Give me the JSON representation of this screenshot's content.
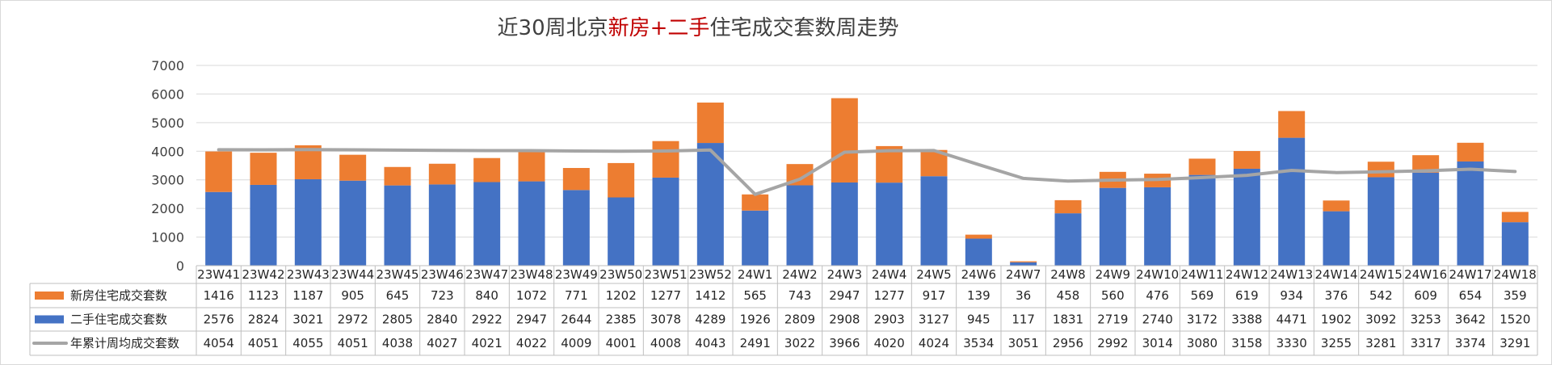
{
  "chart_data": {
    "type": "bar",
    "title": {
      "parts": [
        {
          "text": "近30周北京",
          "color": "#404040"
        },
        {
          "text": "新房+二手",
          "color": "#c00000"
        },
        {
          "text": "住宅成交套数周走势",
          "color": "#404040"
        }
      ]
    },
    "categories": [
      "23W41",
      "23W42",
      "23W43",
      "23W44",
      "23W45",
      "23W46",
      "23W47",
      "23W48",
      "23W49",
      "23W50",
      "23W51",
      "23W52",
      "24W1",
      "24W2",
      "24W3",
      "24W4",
      "24W5",
      "24W6",
      "24W7",
      "24W8",
      "24W9",
      "24W10",
      "24W11",
      "24W12",
      "24W13",
      "24W14",
      "24W15",
      "24W16",
      "24W17",
      "24W18"
    ],
    "ylim": [
      0,
      7000
    ],
    "yticks": [
      0,
      1000,
      2000,
      3000,
      4000,
      5000,
      6000,
      7000
    ],
    "grid": true,
    "legend_placement": "data-table-left",
    "series": [
      {
        "name": "新房住宅成交套数",
        "kind": "bar-stacked",
        "color": "#ed7d31",
        "values": [
          1416,
          1123,
          1187,
          905,
          645,
          723,
          840,
          1072,
          771,
          1202,
          1277,
          1412,
          565,
          743,
          2947,
          1277,
          917,
          139,
          36,
          458,
          560,
          476,
          569,
          619,
          934,
          376,
          542,
          609,
          654,
          359
        ]
      },
      {
        "name": "二手住宅成交套数",
        "kind": "bar-stacked",
        "color": "#4472c4",
        "values": [
          2576,
          2824,
          3021,
          2972,
          2805,
          2840,
          2922,
          2947,
          2644,
          2385,
          3078,
          4289,
          1926,
          2809,
          2908,
          2903,
          3127,
          945,
          117,
          1831,
          2719,
          2740,
          3172,
          3388,
          4471,
          1902,
          3092,
          3253,
          3642,
          1520
        ]
      },
      {
        "name": "年累计周均成交套数",
        "kind": "line",
        "color": "#a5a5a5",
        "values": [
          4054,
          4051,
          4055,
          4051,
          4038,
          4027,
          4021,
          4022,
          4009,
          4001,
          4008,
          4043,
          2491,
          3022,
          3966,
          4020,
          4024,
          3534,
          3051,
          2956,
          2992,
          3014,
          3080,
          3158,
          3330,
          3255,
          3281,
          3317,
          3374,
          3291
        ]
      }
    ]
  }
}
